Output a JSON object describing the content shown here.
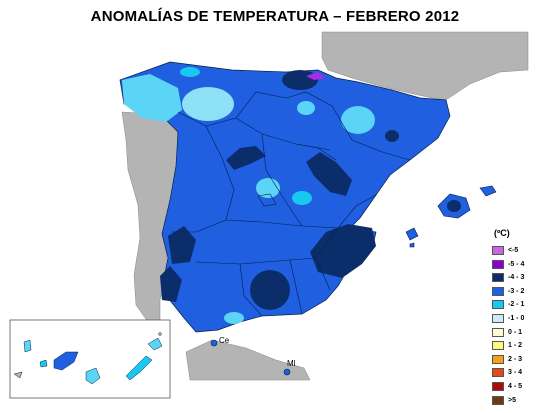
{
  "title": "ANOMALÍAS DE TEMPERATURA – FEBRERO 2012",
  "legend": {
    "unit": "(ºC)",
    "items": [
      {
        "label": "<-5",
        "color": "#cc66dd"
      },
      {
        "label": "-5 - 4",
        "color": "#8800cc"
      },
      {
        "label": "-4 - 3",
        "color": "#0b2e6b"
      },
      {
        "label": "-3 - 2",
        "color": "#1f5fe0"
      },
      {
        "label": "-2 - 1",
        "color": "#18c8f0"
      },
      {
        "label": "-1 - 0",
        "color": "#c8ecfa"
      },
      {
        "label": "0 - 1",
        "color": "#fffbd0"
      },
      {
        "label": "1 - 2",
        "color": "#fff97a"
      },
      {
        "label": "2 - 3",
        "color": "#f4a21a"
      },
      {
        "label": "3 - 4",
        "color": "#e04a14"
      },
      {
        "label": "4 - 5",
        "color": "#a80c0c"
      },
      {
        "label": ">5",
        "color": "#6b3a16"
      }
    ]
  },
  "places": {
    "ceuta": "Ce",
    "melilla": "Ml"
  },
  "colors": {
    "background_land": "#b4b4b4",
    "sea": "#ffffff",
    "base_anomaly": "#1f5fe0"
  }
}
